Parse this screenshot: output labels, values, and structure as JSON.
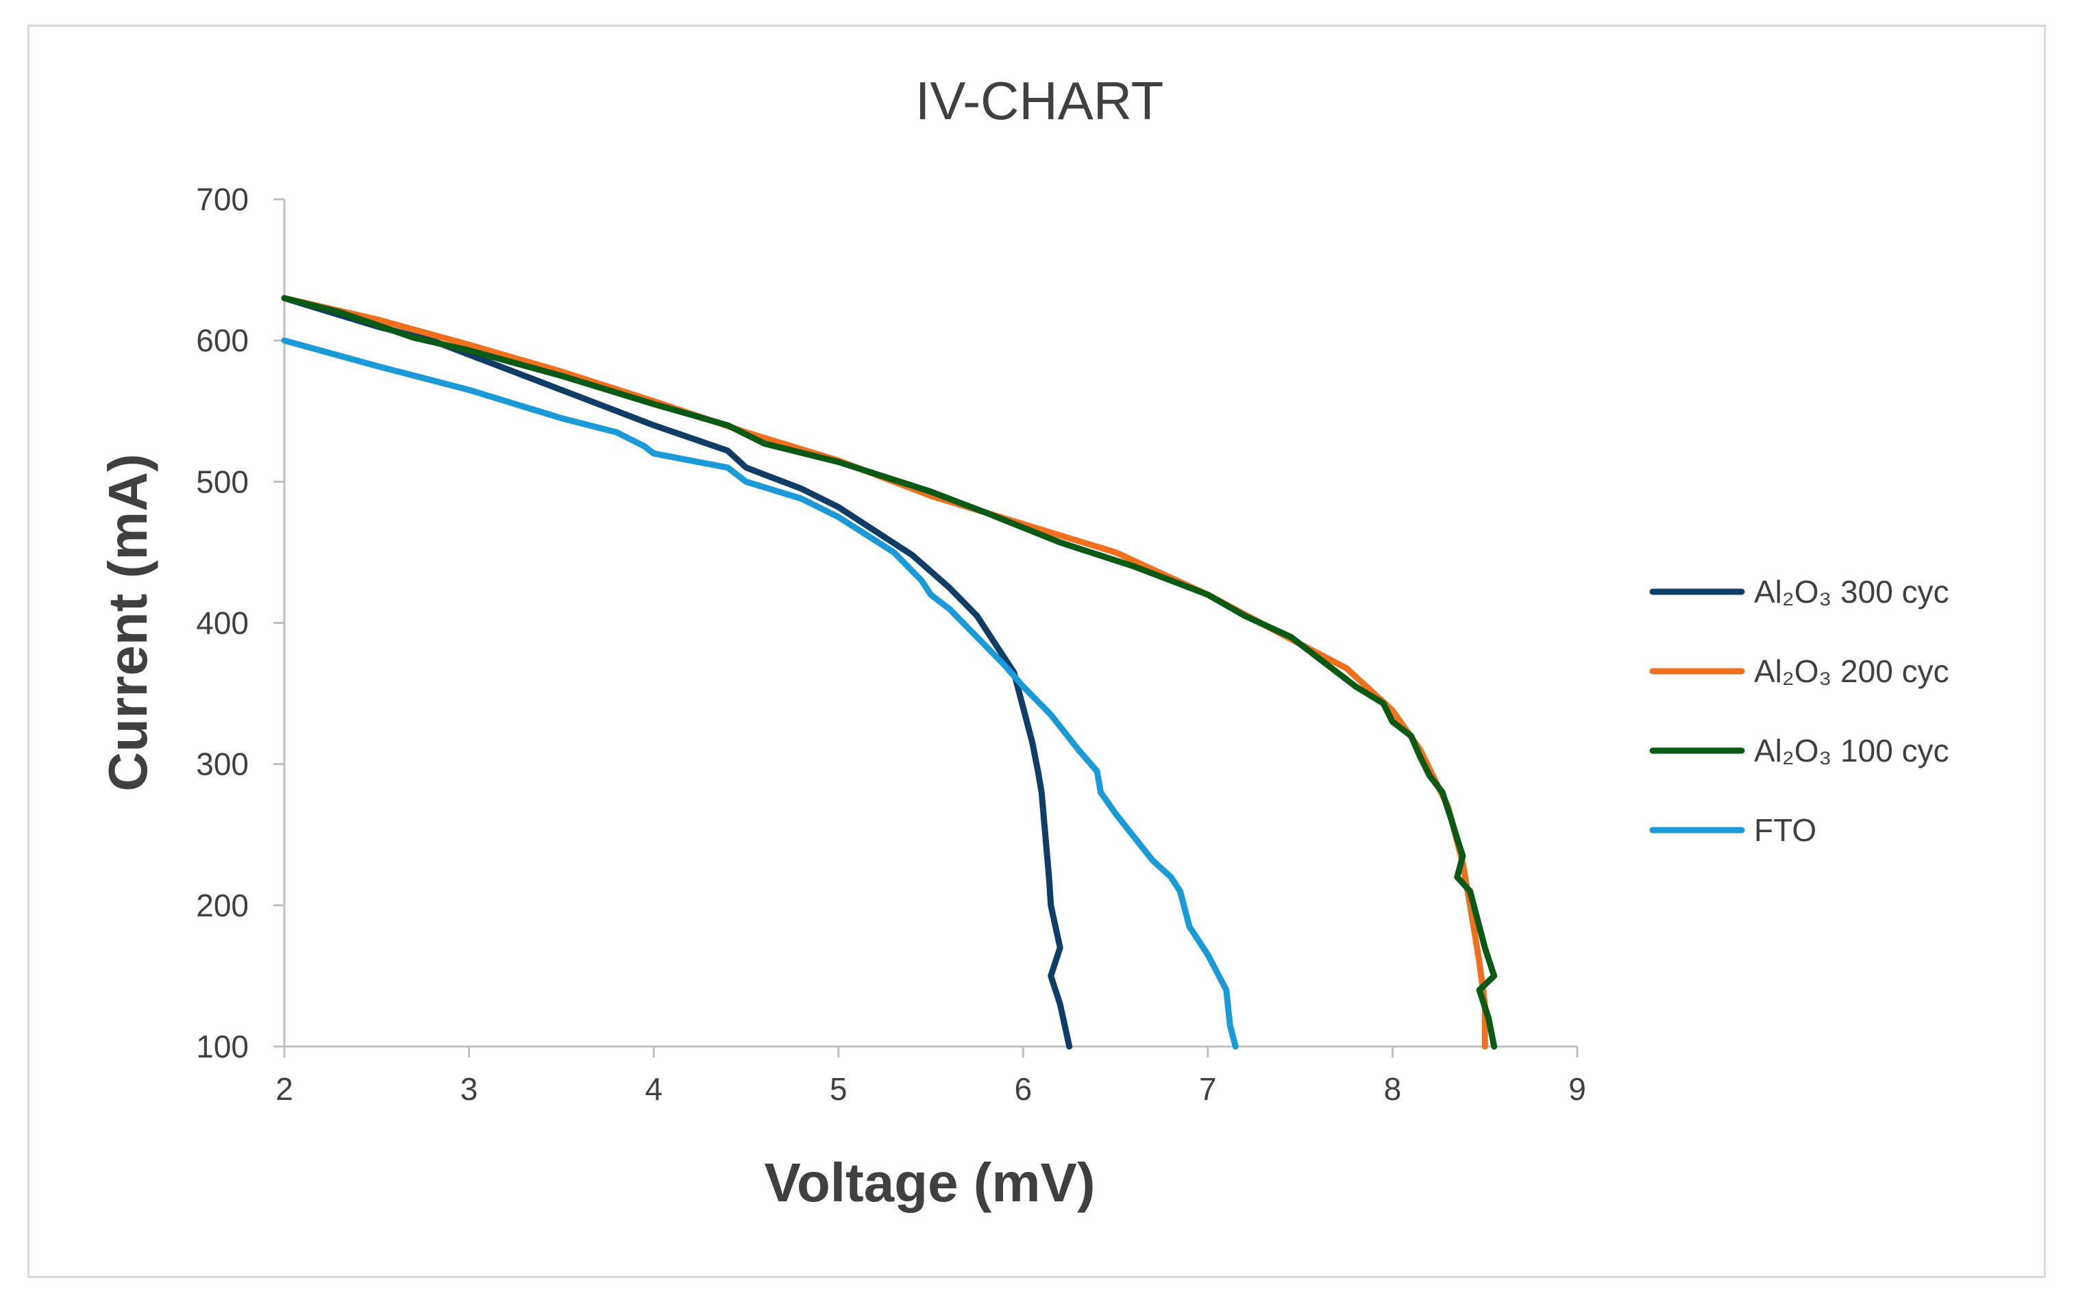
{
  "chart_data": {
    "type": "line",
    "title": "IV-CHART",
    "xlabel": "Voltage (mV)",
    "ylabel": "Current (mA)",
    "xlim": [
      2,
      9
    ],
    "ylim": [
      100,
      700
    ],
    "xticks": [
      2,
      3,
      4,
      5,
      6,
      7,
      8,
      9
    ],
    "yticks": [
      100,
      200,
      300,
      400,
      500,
      600,
      700
    ],
    "grid": false,
    "legend_position": "right",
    "series": [
      {
        "name": "Al₂O₃  300 cyc",
        "color": "#0f3d66",
        "x": [
          2.0,
          2.5,
          2.8,
          3.0,
          3.5,
          4.0,
          4.4,
          4.5,
          4.8,
          5.0,
          5.2,
          5.4,
          5.6,
          5.75,
          5.85,
          5.95,
          6.0,
          6.05,
          6.08,
          6.1,
          6.12,
          6.14,
          6.15,
          6.2,
          6.15,
          6.2,
          6.25
        ],
        "y": [
          630,
          610,
          600,
          590,
          565,
          540,
          522,
          510,
          495,
          482,
          465,
          448,
          425,
          405,
          385,
          365,
          340,
          315,
          295,
          280,
          250,
          220,
          200,
          170,
          150,
          130,
          100
        ]
      },
      {
        "name": "Al₂O₃  200 cyc",
        "color": "#f07020",
        "x": [
          2.0,
          2.5,
          3.0,
          3.5,
          4.0,
          4.5,
          5.0,
          5.5,
          6.0,
          6.5,
          7.0,
          7.5,
          7.75,
          8.0,
          8.15,
          8.3,
          8.38,
          8.42,
          8.47,
          8.5,
          8.5
        ],
        "y": [
          630,
          615,
          597,
          578,
          557,
          535,
          515,
          490,
          470,
          450,
          420,
          385,
          368,
          338,
          310,
          270,
          230,
          200,
          160,
          130,
          100
        ]
      },
      {
        "name": "Al₂O₃  100 cyc",
        "color": "#0a5a16",
        "x": [
          2.0,
          2.3,
          2.7,
          3.0,
          3.5,
          4.0,
          4.4,
          4.6,
          5.0,
          5.5,
          5.8,
          6.2,
          6.6,
          6.8,
          7.0,
          7.2,
          7.45,
          7.6,
          7.8,
          7.95,
          8.0,
          8.1,
          8.15,
          8.2,
          8.27,
          8.32,
          8.36,
          8.38,
          8.35,
          8.42,
          8.45,
          8.5,
          8.55,
          8.47,
          8.52,
          8.55
        ],
        "y": [
          630,
          620,
          602,
          593,
          575,
          555,
          540,
          527,
          514,
          493,
          478,
          457,
          440,
          430,
          420,
          405,
          390,
          375,
          355,
          343,
          330,
          320,
          305,
          292,
          280,
          260,
          243,
          235,
          220,
          210,
          195,
          170,
          150,
          140,
          120,
          100
        ]
      },
      {
        "name": "FTO",
        "color": "#1a9ad6",
        "x": [
          2.0,
          2.5,
          3.0,
          3.5,
          3.8,
          3.95,
          4.0,
          4.4,
          4.5,
          4.8,
          5.0,
          5.3,
          5.45,
          5.5,
          5.6,
          5.75,
          5.9,
          6.0,
          6.15,
          6.3,
          6.4,
          6.42,
          6.5,
          6.7,
          6.8,
          6.85,
          6.9,
          7.0,
          7.1,
          7.12,
          7.15
        ],
        "y": [
          600,
          582,
          565,
          545,
          535,
          525,
          520,
          510,
          500,
          488,
          475,
          450,
          430,
          420,
          410,
          390,
          370,
          355,
          335,
          310,
          295,
          280,
          265,
          232,
          220,
          210,
          185,
          165,
          140,
          115,
          100
        ]
      }
    ]
  }
}
